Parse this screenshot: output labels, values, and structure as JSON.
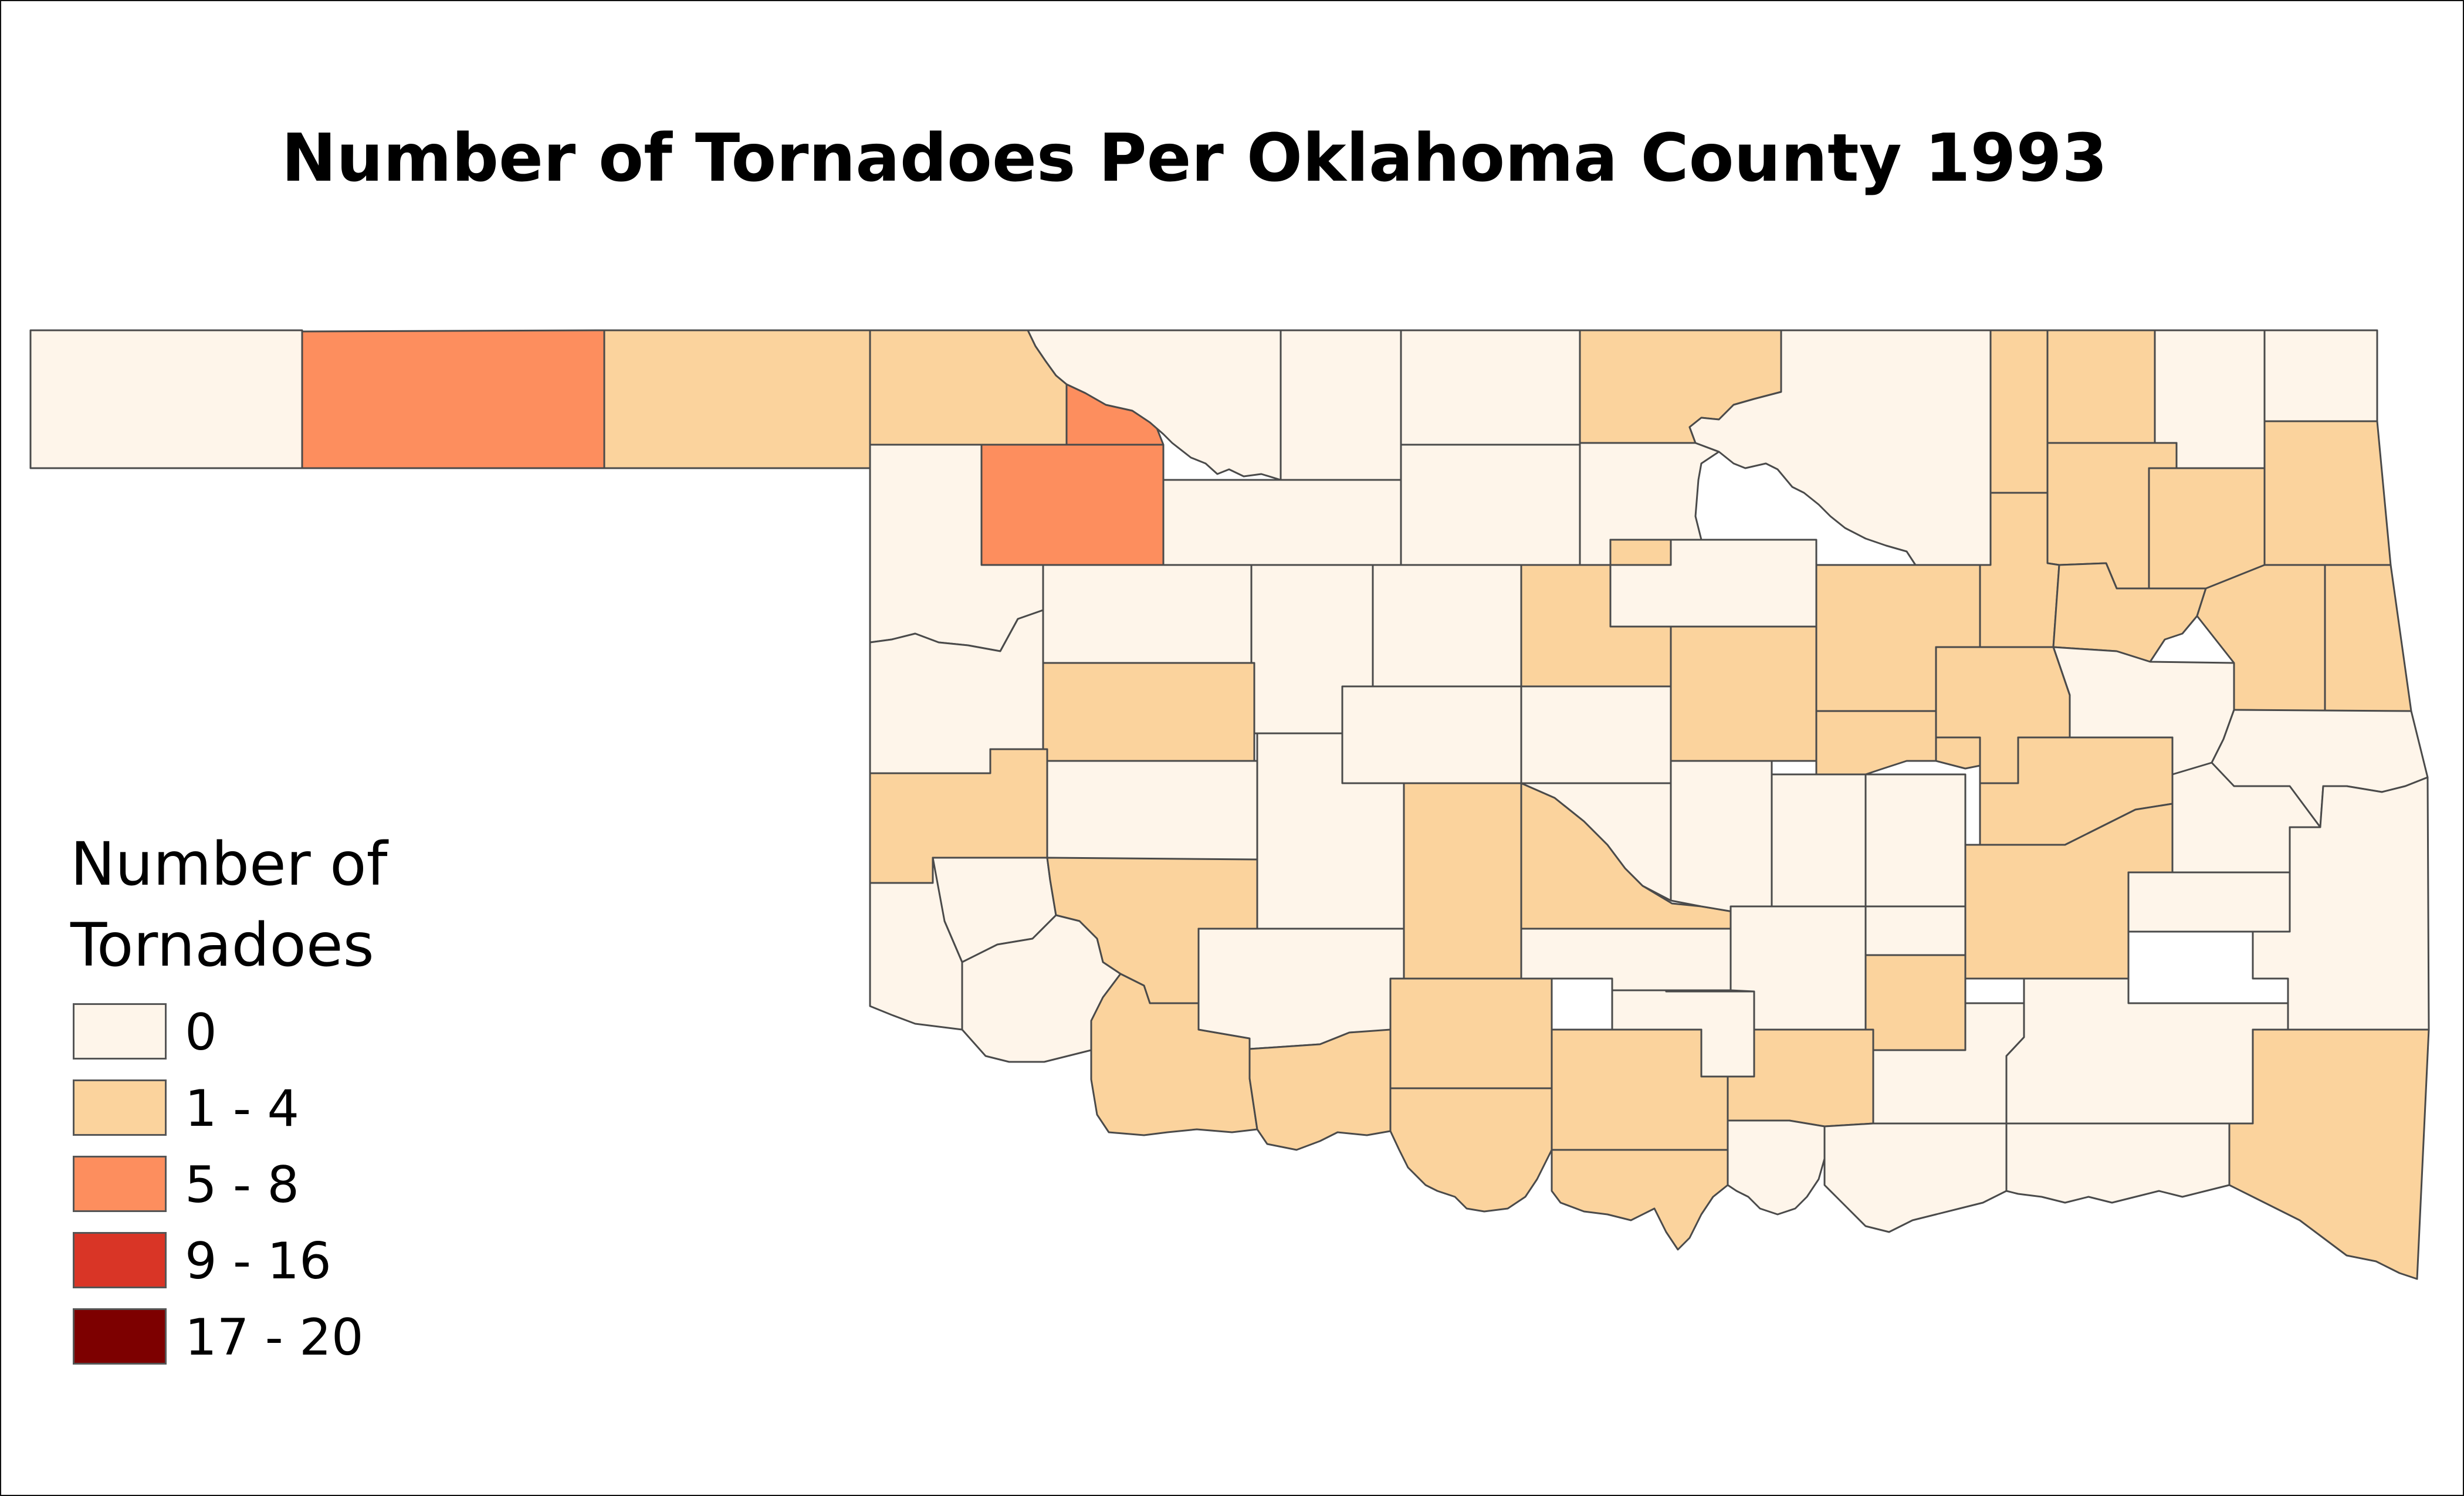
{
  "map": {
    "title": "Number of Tornadoes Per Oklahoma County 1993"
  },
  "legend": {
    "title_line1": "Number of",
    "title_line2": "Tornadoes",
    "classes": [
      {
        "label": "0",
        "color": "#fef5ea"
      },
      {
        "label": "1 - 4",
        "color": "#fbd39d"
      },
      {
        "label": "5 - 8",
        "color": "#fd8e5e"
      },
      {
        "label": "9 - 16",
        "color": "#d93526"
      },
      {
        "label": "17 - 20",
        "color": "#7d0000"
      }
    ]
  },
  "colors": {
    "zero": "#fef5ea",
    "low": "#fbd39d",
    "mid": "#fd8e5e",
    "high": "#d93526",
    "max": "#7d0000",
    "border": "#4a4a4a"
  }
}
